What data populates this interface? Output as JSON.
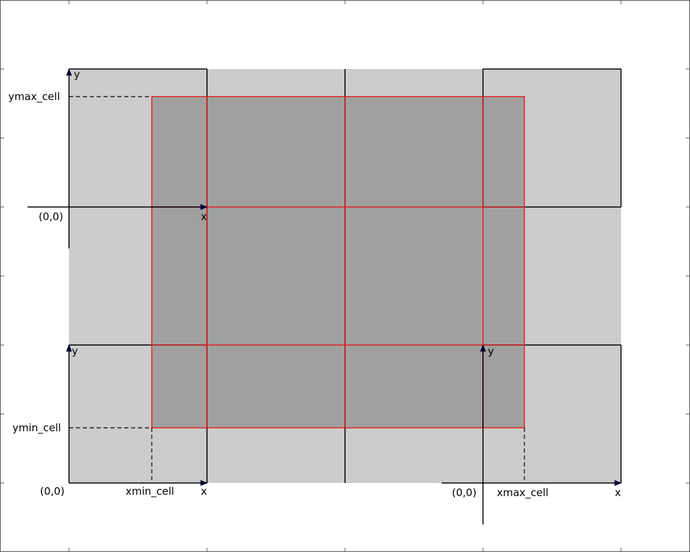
{
  "labels": {
    "ymax": "ymax_cell",
    "ymin": "ymin_cell",
    "xmin": "xmin_cell",
    "xmax": "xmax_cell",
    "origin_top_left": "(0,0)",
    "x_top_left": "x",
    "y_top_left": "y",
    "y_bottom_left": "y",
    "origin_bottom_left": "(0,0)",
    "x_bottom_left": "x",
    "y_bottom_right": "y",
    "origin_bottom_right": "(0,0)",
    "x_bottom_right": "x"
  },
  "colors": {
    "background": "#ffffff",
    "grid_cell_fill": "#cccccc",
    "selected_region_fill": "#a0a0a0",
    "selected_region_stroke": "#e02020",
    "cell_border": "#000000",
    "axis_arrow": "#000033",
    "dashed_line": "#000000"
  }
}
